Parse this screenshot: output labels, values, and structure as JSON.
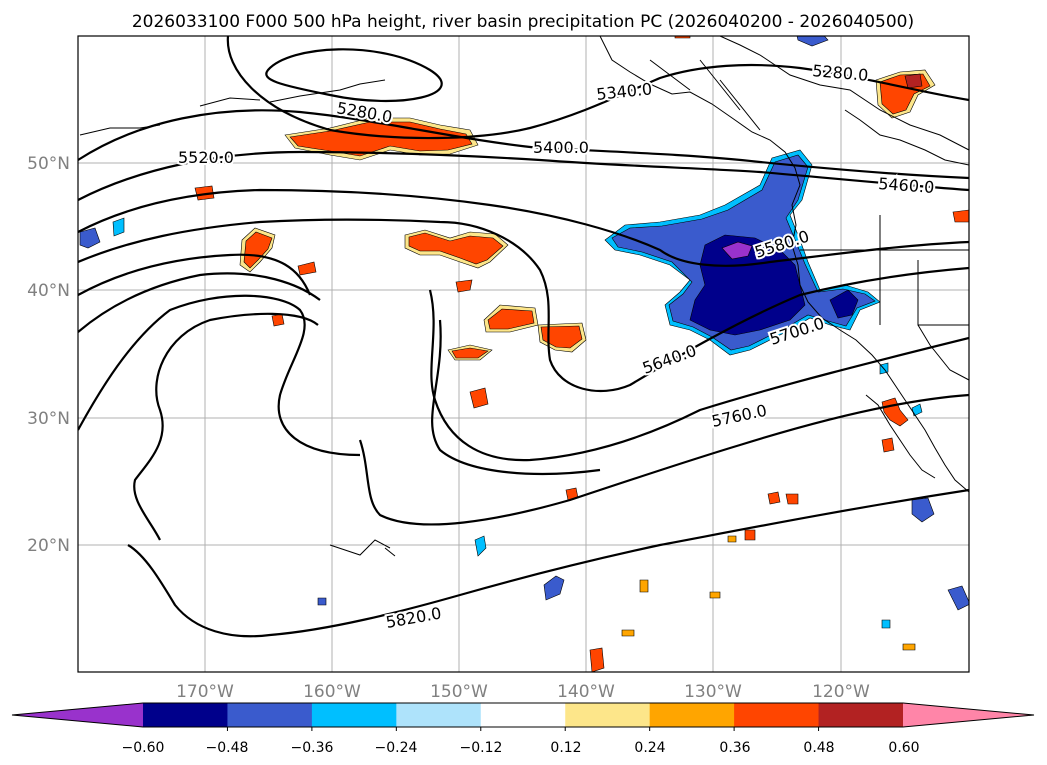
{
  "title": "2026033100 F000 500 hPa height, river basin precipitation PC (2026040200 - 2026040500)",
  "lat_labels": [
    "50°N",
    "40°N",
    "30°N",
    "20°N"
  ],
  "lon_labels": [
    "170°W",
    "160°W",
    "150°W",
    "140°W",
    "130°W",
    "120°W"
  ],
  "contour_labels": [
    "5280.0",
    "5340.0",
    "5280.0",
    "5400.0",
    "5520.0",
    "5460.0",
    "5580.0",
    "5640.0",
    "5700.0",
    "5760.0",
    "5820.0"
  ],
  "colorbar": {
    "tick_labels": [
      "−0.60",
      "−0.48",
      "−0.36",
      "−0.24",
      "−0.12",
      "0.12",
      "0.24",
      "0.36",
      "0.48",
      "0.60"
    ],
    "colors": [
      "#9932cc",
      "#00008b",
      "#3a5bcd",
      "#00bfff",
      "#aee3fb",
      "#ffffff",
      "#fde68a",
      "#ffa500",
      "#ff4500",
      "#b22222",
      "#ff85a8"
    ]
  },
  "colors": {
    "neg_dark": "#00008b",
    "neg_mid": "#3a5bcd",
    "neg_light": "#00bfff",
    "neg_faint": "#aee3fb",
    "neg_extreme": "#9932cc",
    "pos_faint": "#fde68a",
    "pos_light": "#ffa500",
    "pos_mid": "#ff4500",
    "pos_dark": "#b22222",
    "pos_extreme": "#ff85a8"
  }
}
